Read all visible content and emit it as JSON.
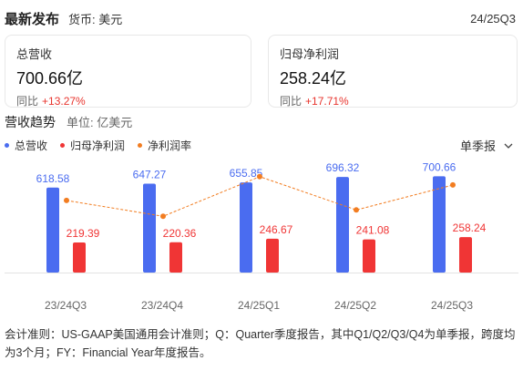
{
  "header": {
    "title": "最新发布",
    "currency": "货币: 美元",
    "period": "24/25Q3"
  },
  "cards": [
    {
      "label": "总营收",
      "value": "700.66亿",
      "yoy_label": "同比",
      "yoy_value": "+13.27%"
    },
    {
      "label": "归母净利润",
      "value": "258.24亿",
      "yoy_label": "同比",
      "yoy_value": "+17.71%"
    }
  ],
  "section": {
    "title": "营收趋势",
    "unit": "单位: 亿美元"
  },
  "mode_selector": {
    "label": "单季报",
    "icon": "chevron-down-icon"
  },
  "colors": {
    "revenue": "#4a6cf0",
    "profit": "#f03535",
    "margin": "#f27d21",
    "up": "#e8352e"
  },
  "chart_data": {
    "type": "bar",
    "categories": [
      "23/24Q3",
      "23/24Q4",
      "24/25Q1",
      "24/25Q2",
      "24/25Q3"
    ],
    "series": [
      {
        "name": "总营收",
        "kind": "bar",
        "values": [
          618.58,
          647.27,
          655.85,
          696.32,
          700.66
        ],
        "labels": [
          "618.58",
          "647.27",
          "655.85",
          "696.32",
          "700.66"
        ]
      },
      {
        "name": "归母净利润",
        "kind": "bar",
        "values": [
          219.39,
          220.36,
          246.67,
          241.08,
          258.24
        ],
        "labels": [
          "219.39",
          "220.36",
          "246.67",
          "241.08",
          "258.24"
        ]
      },
      {
        "name": "净利润率",
        "kind": "line",
        "values": [
          35.47,
          34.05,
          37.61,
          34.62,
          36.86
        ]
      }
    ],
    "bar_ylim": [
      0,
      730
    ],
    "line_ylim": [
      29,
      38
    ],
    "grid": false,
    "legend_position": "top-left"
  },
  "footnote": "会计准则：US-GAAP美国通用会计准则；Q：Quarter季度报告，其中Q1/Q2/Q3/Q4为单季报，跨度均为3个月；FY：Financial Year年度报告。"
}
